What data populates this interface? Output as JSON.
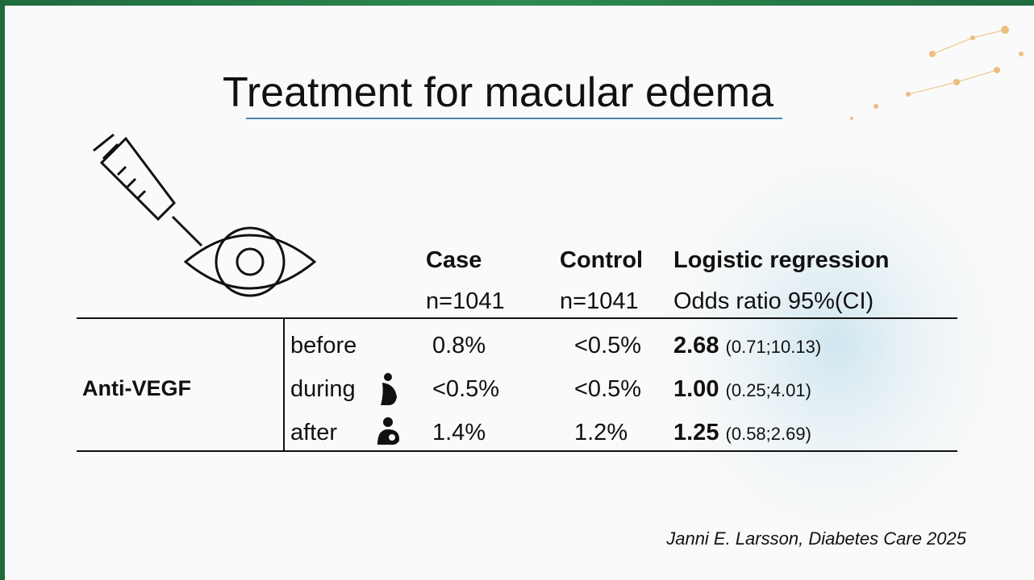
{
  "title": "Treatment for macular edema",
  "table": {
    "columns": [
      {
        "name": "Case",
        "sub": "n=1041"
      },
      {
        "name": "Control",
        "sub": "n=1041"
      },
      {
        "name": "Logistic regression",
        "sub": "Odds ratio 95%(CI)"
      }
    ],
    "group": "Anti-VEGF",
    "rows": [
      {
        "label": "before",
        "case": "0.8%",
        "control": "<0.5%",
        "or": "2.68",
        "ci": "(0.71;10.13)"
      },
      {
        "label": "during",
        "case": "<0.5%",
        "control": "<0.5%",
        "or": "1.00",
        "ci": "(0.25;4.01)"
      },
      {
        "label": "after",
        "case": "1.4%",
        "control": "1.2%",
        "or": "1.25",
        "ci": "(0.58;2.69)"
      }
    ]
  },
  "citation": "Janni E. Larsson, Diabetes Care 2025"
}
